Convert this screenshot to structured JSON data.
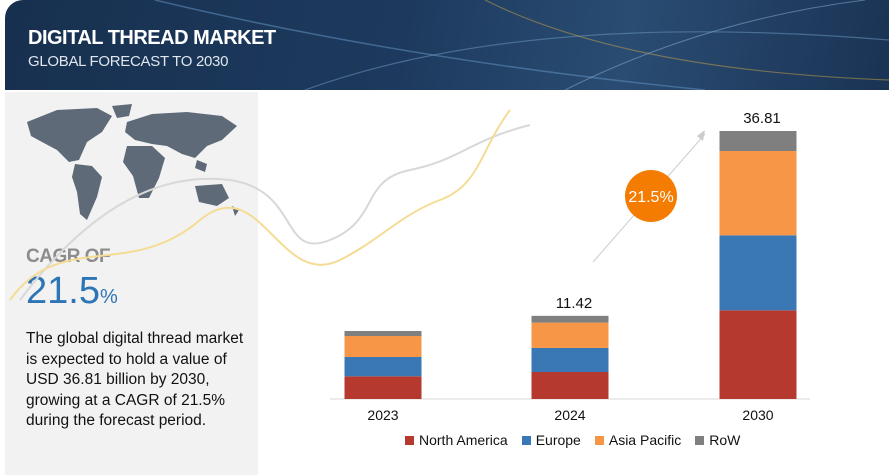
{
  "header": {
    "title": "DIGITAL THREAD MARKET",
    "subtitle": "GLOBAL FORECAST TO 2030"
  },
  "summary": {
    "cagr_label": "CAGR OF",
    "cagr_value": "21.5",
    "cagr_unit": "%",
    "description": "The global digital thread market is expected to hold a value of USD 36.81 billion by 2030, growing at a CAGR of 21.5% during the forecast period."
  },
  "icons": {
    "map": "world-map-icon"
  },
  "chart_data": {
    "type": "bar",
    "stacked": true,
    "categories": [
      "2023",
      "2024",
      "2030"
    ],
    "series": [
      {
        "name": "North America",
        "color": "#b5392f",
        "values": [
          3.12,
          3.71,
          12.18
        ]
      },
      {
        "name": "Europe",
        "color": "#3a78b5",
        "values": [
          2.65,
          3.3,
          10.3
        ]
      },
      {
        "name": "Asia Pacific",
        "color": "#f79646",
        "values": [
          2.88,
          3.48,
          11.58
        ]
      },
      {
        "name": "RoW",
        "color": "#7f7f7f",
        "values": [
          0.69,
          0.93,
          2.75
        ]
      }
    ],
    "total_labels": [
      "",
      "11.42",
      "36.81"
    ],
    "cagr_badge": "21.5%",
    "cagr_badge_color": "#f47c00",
    "ylim": [
      0,
      36.81
    ],
    "grid": false,
    "legend": "bottom"
  }
}
